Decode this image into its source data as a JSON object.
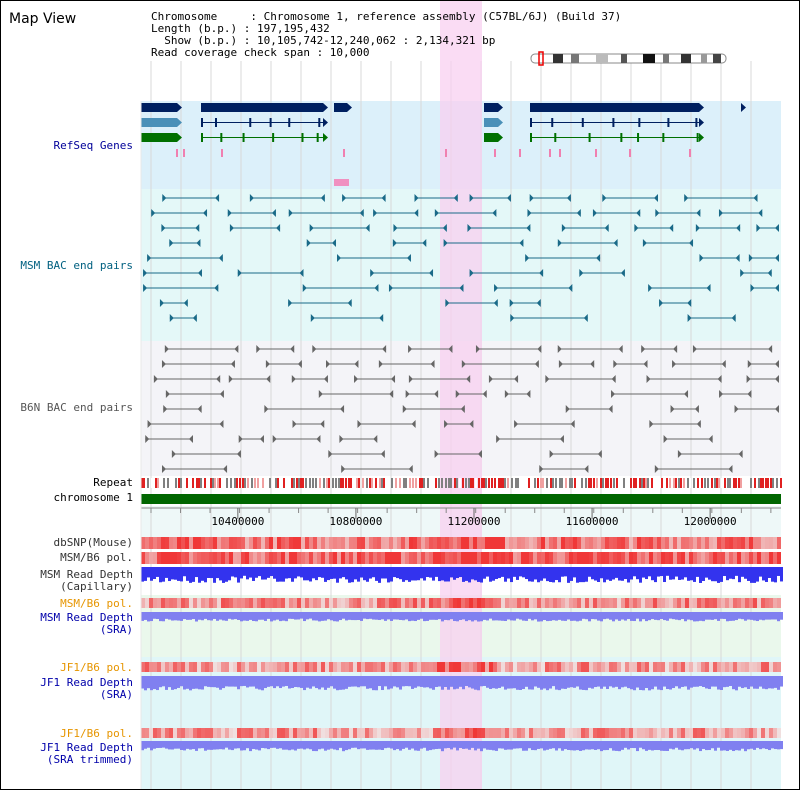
{
  "header": {
    "title": "Map View",
    "info_lines": [
      "Chromosome     : Chromosome 1, reference assembly (C57BL/6J) (Build 37)",
      "Length (b.p.) : 197,195,432",
      "  Show (b.p.) : 10,105,742-12,240,062 : 2,134,321 bp",
      "Read coverage check span : 10,000"
    ]
  },
  "tracks": [
    {
      "id": "refseq",
      "label": "RefSeq Genes",
      "color": "#000099"
    },
    {
      "id": "msm-bac",
      "label": "MSM BAC end pairs",
      "color": "#006080"
    },
    {
      "id": "b6n-bac",
      "label": "B6N BAC end pairs",
      "color": "#555555"
    },
    {
      "id": "repeat",
      "label": "Repeat",
      "color": "#000000"
    },
    {
      "id": "chromosome",
      "label": "chromosome 1",
      "color": "#000000"
    },
    {
      "id": "dbsnp",
      "label": "dbSNP(Mouse)",
      "color": "#333333"
    },
    {
      "id": "msm-b6-pol-cap",
      "label": "MSM/B6 pol.",
      "color": "#333333"
    },
    {
      "id": "msm-depth-cap",
      "label": "MSM Read Depth\n(Capillary)",
      "color": "#333333"
    },
    {
      "id": "msm-b6-pol-sra",
      "label": "MSM/B6 pol.",
      "color": "#e69500"
    },
    {
      "id": "msm-depth-sra",
      "label": "MSM Read Depth\n(SRA)",
      "color": "#0000aa"
    },
    {
      "id": "jf1-b6-pol",
      "label": "JF1/B6 pol.",
      "color": "#e69500"
    },
    {
      "id": "jf1-depth-sra",
      "label": "JF1 Read Depth\n(SRA)",
      "color": "#0000aa"
    },
    {
      "id": "jf1-b6-pol-trim",
      "label": "JF1/B6 pol.",
      "color": "#e69500"
    },
    {
      "id": "jf1-depth-trim",
      "label": "JF1 Read Depth\n(SRA trimmed)",
      "color": "#0000aa"
    }
  ],
  "axis": {
    "tick_labels": [
      "10400000",
      "10800000",
      "11200000",
      "11600000",
      "12000000"
    ],
    "tick_values": [
      10400000,
      10800000,
      11200000,
      11600000,
      12000000
    ]
  },
  "colors": {
    "refseq_bg": "#dcf0fa",
    "msm_bg": "#e4f8f8",
    "b6n_bg": "#f4f4f8",
    "highlight": "#f8d0f0",
    "sra_bg": "#eaf8ec",
    "chromosome_bar": "#006600",
    "gene_dark": "#002060",
    "gene_mid": "#4a90b8",
    "gene_green": "#007000",
    "msm_feature": "#1a6a88",
    "b6n_feature": "#666666",
    "depth_blue": "#3333ee",
    "depth_light": "#8080f0",
    "snp_red": "#ee3030"
  }
}
